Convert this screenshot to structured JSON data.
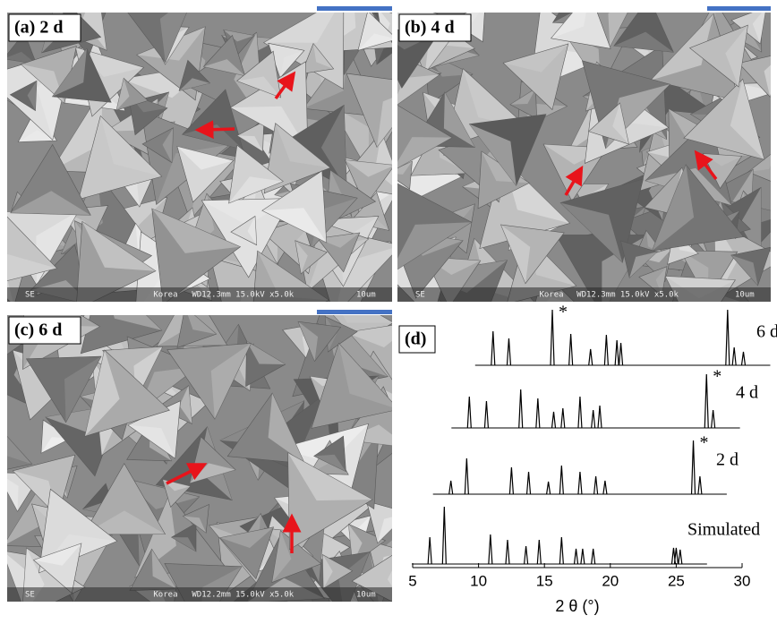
{
  "panels": [
    {
      "label": "(a) 2 d",
      "footer": [
        "SE",
        "Korea",
        "WD12.3mm 15.0kV x5.0k",
        "10um"
      ]
    },
    {
      "label": "(b) 4 d",
      "footer": [
        "SE",
        "Korea",
        "WD12.3mm 15.0kV x5.0k",
        "10um"
      ]
    },
    {
      "label": "(c) 6 d",
      "footer": [
        "SE",
        "Korea",
        "WD12.2mm 15.0kV x5.0k",
        "10um"
      ]
    }
  ],
  "chart_data": {
    "type": "line",
    "label": "(d)",
    "x_label": "2 θ (°)",
    "xlim": [
      5,
      30
    ],
    "xticks": [
      5,
      10,
      15,
      20,
      25,
      30
    ],
    "series": [
      {
        "name": "Simulated",
        "color": "#000000",
        "x": [
          6.3,
          7.4,
          10.9,
          12.2,
          13.6,
          14.6,
          16.3,
          17.4,
          17.9,
          18.7,
          24.8,
          25.0,
          25.3
        ],
        "values": [
          30,
          64,
          33,
          27,
          20,
          27,
          30,
          17,
          17,
          17,
          18,
          18,
          16
        ]
      },
      {
        "name": "2 d",
        "color": "#000000",
        "annotation": "*",
        "x": [
          7.9,
          9.1,
          12.5,
          13.8,
          15.3,
          16.3,
          17.7,
          18.9,
          19.6,
          26.3,
          26.8
        ],
        "values": [
          15,
          40,
          30,
          25,
          14,
          32,
          25,
          20,
          15,
          60,
          20
        ]
      },
      {
        "name": "4 d",
        "color": "#000000",
        "annotation": "*",
        "x": [
          9.3,
          10.6,
          13.2,
          14.5,
          15.7,
          16.4,
          17.7,
          18.7,
          19.2,
          27.3,
          27.8
        ],
        "values": [
          35,
          30,
          43,
          33,
          18,
          22,
          35,
          20,
          25,
          60,
          20
        ]
      },
      {
        "name": "6 d",
        "color": "#000000",
        "annotation": "*",
        "x": [
          11.1,
          12.3,
          15.6,
          17.0,
          18.5,
          19.7,
          20.5,
          20.8,
          28.9,
          29.4,
          30.1
        ],
        "values": [
          38,
          30,
          62,
          35,
          18,
          34,
          28,
          25,
          62,
          20,
          15
        ]
      }
    ]
  }
}
